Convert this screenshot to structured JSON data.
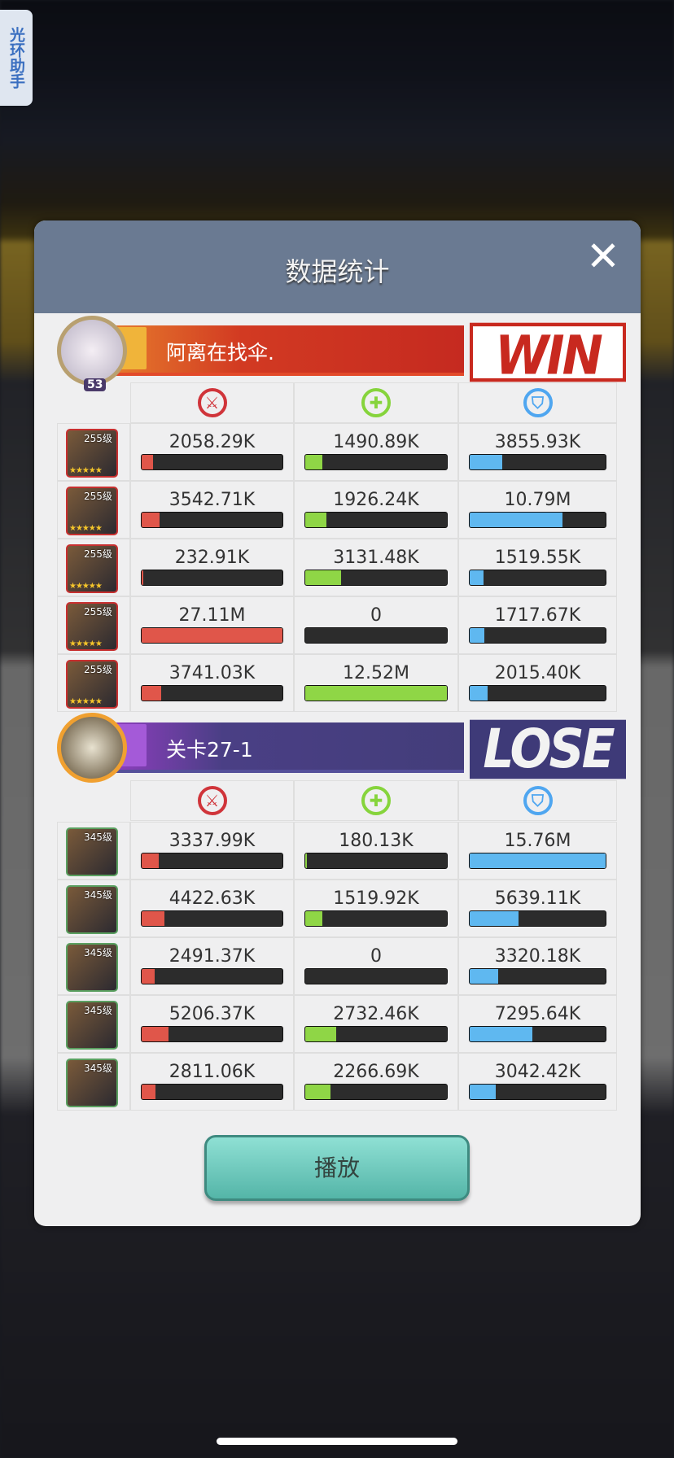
{
  "side_tab": {
    "label": "光环助手"
  },
  "dialog": {
    "title": "数据统计",
    "close_icon": "close-icon",
    "play_label": "播放"
  },
  "colors": {
    "damage": "#e0564a",
    "heal": "#8fd646",
    "tank": "#5fb8f0",
    "win": "#c8291f",
    "lose": "#3e3a78"
  },
  "stat_icons": [
    {
      "name": "damage-sword-icon",
      "glyph": "⚔",
      "color": "#d0343a"
    },
    {
      "name": "heal-cross-icon",
      "glyph": "✚",
      "color": "#86d43c"
    },
    {
      "name": "tank-shield-icon",
      "glyph": "⛉",
      "color": "#4fa6f0"
    }
  ],
  "teams": [
    {
      "name": "阿离在找伞.",
      "result": "WIN",
      "player_level": "53",
      "theme": "win",
      "hero_level": "255级",
      "heroes": [
        {
          "stats": [
            "2058.29K",
            "1490.89K",
            "3855.93K"
          ],
          "fill": [
            0.08,
            0.12,
            0.24
          ]
        },
        {
          "stats": [
            "3542.71K",
            "1926.24K",
            "10.79M"
          ],
          "fill": [
            0.13,
            0.15,
            0.68
          ]
        },
        {
          "stats": [
            "232.91K",
            "3131.48K",
            "1519.55K"
          ],
          "fill": [
            0.01,
            0.25,
            0.1
          ]
        },
        {
          "stats": [
            "27.11M",
            "0",
            "1717.67K"
          ],
          "fill": [
            1.0,
            0,
            0.11
          ]
        },
        {
          "stats": [
            "3741.03K",
            "12.52M",
            "2015.40K"
          ],
          "fill": [
            0.14,
            1.0,
            0.13
          ]
        }
      ]
    },
    {
      "name": "关卡27-1",
      "result": "LOSE",
      "theme": "lose",
      "hero_level": "345级",
      "heroes": [
        {
          "stats": [
            "3337.99K",
            "180.13K",
            "15.76M"
          ],
          "fill": [
            0.12,
            0.01,
            1.0
          ]
        },
        {
          "stats": [
            "4422.63K",
            "1519.92K",
            "5639.11K"
          ],
          "fill": [
            0.16,
            0.12,
            0.36
          ]
        },
        {
          "stats": [
            "2491.37K",
            "0",
            "3320.18K"
          ],
          "fill": [
            0.09,
            0,
            0.21
          ]
        },
        {
          "stats": [
            "5206.37K",
            "2732.46K",
            "7295.64K"
          ],
          "fill": [
            0.19,
            0.22,
            0.46
          ]
        },
        {
          "stats": [
            "2811.06K",
            "2266.69K",
            "3042.42K"
          ],
          "fill": [
            0.1,
            0.18,
            0.19
          ]
        }
      ]
    }
  ]
}
